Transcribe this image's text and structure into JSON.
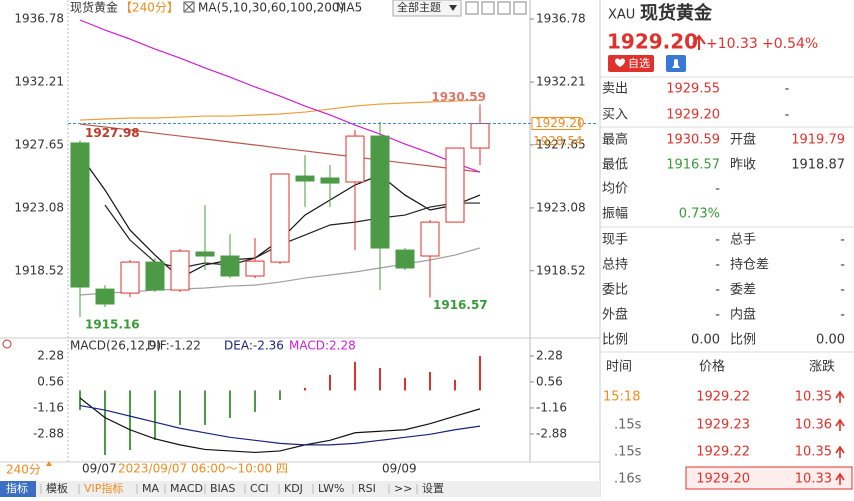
{
  "chart_data": [
    {
      "type": "candlestick",
      "title": "现货黄金",
      "subtitle": "【240分】",
      "indicator_label": "MA(5,10,30,60,100,200)",
      "indicator_series": "MA5",
      "categories": [
        "09/07",
        null,
        null,
        null,
        null,
        null,
        null,
        null,
        null,
        null,
        null,
        null,
        "09/09",
        null,
        null,
        null,
        null
      ],
      "cursor_label": "2023/09/07 06:00～10:00 四",
      "open": [
        1927.79,
        1917.19,
        1916.9,
        1919.15,
        1917.12,
        1919.88,
        1919.59,
        1918.14,
        1919.15,
        1925.39,
        1925.25,
        1924.96,
        1928.29,
        1920.02,
        1919.59,
        1922.05,
        1927.42
      ],
      "high": [
        1927.98,
        1917.48,
        1919.3,
        1919.44,
        1920.1,
        1923.29,
        1921.18,
        1920.89,
        1925.54,
        1926.91,
        1926.19,
        1928.73,
        1929.31,
        1920.17,
        1922.2,
        1927.42,
        1930.59
      ],
      "low": [
        1915.16,
        1915.89,
        1916.61,
        1916.98,
        1916.98,
        1918.57,
        1917.99,
        1917.99,
        1919.0,
        1923.14,
        1923.14,
        1920.02,
        1917.12,
        1918.57,
        1916.57,
        1922.05,
        1926.19
      ],
      "close": [
        1917.34,
        1916.11,
        1919.15,
        1917.12,
        1919.95,
        1919.59,
        1918.14,
        1919.22,
        1925.54,
        1925.03,
        1924.88,
        1928.29,
        1920.17,
        1918.72,
        1922.05,
        1927.42,
        1929.2
      ],
      "up_color": "#e0322c",
      "down_color": "#4c9a45",
      "series": [
        {
          "color": "#111111",
          "values": [
            1926.91,
            1924.38,
            1921.47,
            1919.66,
            1917.99,
            1918.94,
            1919.3,
            1919.44,
            1920.75,
            1922.56,
            1923.65,
            1924.74,
            1925.46,
            1924.01,
            1922.93,
            1923.29,
            1924.01
          ]
        },
        {
          "color": "#222222",
          "values": [
            null,
            1923.29,
            1920.75,
            1919.15,
            1918.72,
            1919.08,
            1918.94,
            1919.44,
            1920.39,
            1921.11,
            1921.84,
            1922.05,
            1922.35,
            1922.56,
            1923.14,
            1923.43,
            1923.43
          ]
        },
        {
          "color": "#a0a0a0",
          "values": [
            1916.76,
            1916.9,
            1916.98,
            1917.12,
            1917.19,
            1917.27,
            1917.41,
            1917.48,
            1917.7,
            1917.99,
            1918.21,
            1918.43,
            1918.72,
            1919.01,
            1919.3,
            1919.66,
            1920.17
          ]
        },
        {
          "color": "#e8a03c",
          "values": [
            1929.45,
            1929.53,
            1929.6,
            1929.6,
            1929.67,
            1929.74,
            1929.74,
            1929.82,
            1929.89,
            1930.03,
            1930.25,
            1930.47,
            1930.61,
            1930.69,
            1930.76,
            1930.83,
            1930.9
          ]
        },
        {
          "color": "#b85a50",
          "values": [
            1929.16,
            1928.95,
            1928.73,
            1928.51,
            1928.29,
            1928.08,
            1927.86,
            1927.64,
            1927.42,
            1927.21,
            1926.99,
            1926.77,
            1926.55,
            1926.33,
            1926.12,
            1925.9,
            1925.68
          ]
        },
        {
          "color": "#d020d0",
          "values": [
            1936.71,
            1935.98,
            1935.33,
            1934.6,
            1933.95,
            1933.23,
            1932.57,
            1931.85,
            1931.19,
            1930.47,
            1929.82,
            1929.09,
            1928.44,
            1927.71,
            1927.06,
            1926.33,
            1925.68
          ]
        }
      ],
      "ylim": [
        1913.86,
        1937.29
      ],
      "yticks": [
        1936.78,
        1932.21,
        1927.65,
        1923.08,
        1918.52
      ],
      "grid": false,
      "extreme_labels": [
        1927.98,
        1915.16,
        1930.59,
        1916.57
      ],
      "price_line": {
        "value": 1929.2,
        "label": "1929.20"
      },
      "ma_marker": 1928.54
    },
    {
      "type": "macd",
      "title": "MACD(26,12,9)",
      "legend_labels": [
        "DIF:-1.22",
        "DEA:-2.36",
        "MACD:2.28"
      ],
      "values": [
        -1.29,
        -4.27,
        -3.94,
        -3.27,
        -2.28,
        -2.28,
        -1.82,
        -1.42,
        -0.63,
        0.17,
        1.03,
        1.89,
        1.49,
        0.83,
        1.22,
        0.7,
        2.28
      ],
      "up_color": "#e0322c",
      "down_color": "#4c9a45",
      "series": [
        {
          "color": "#111111",
          "values": [
            -0.5,
            -1.8,
            -2.6,
            -3.2,
            -3.6,
            -3.9,
            -4.0,
            -4.1,
            -4.0,
            -3.6,
            -3.3,
            -2.8,
            -2.7,
            -2.6,
            -2.2,
            -1.7,
            -1.22
          ]
        },
        {
          "color": "#1a237e",
          "values": [
            -1.0,
            -1.3,
            -1.7,
            -2.1,
            -2.5,
            -2.8,
            -3.1,
            -3.3,
            -3.5,
            -3.6,
            -3.6,
            -3.5,
            -3.3,
            -3.1,
            -2.9,
            -2.6,
            -2.36
          ]
        }
      ],
      "ylim": [
        -4.6,
        2.74
      ],
      "yticks": [
        2.28,
        0.56,
        -1.16,
        -2.88
      ],
      "grid": false
    }
  ],
  "toolbar": {
    "theme": "全部主题"
  },
  "footer": {
    "period": "240分",
    "tabs": [
      "指标",
      "模板",
      "VIP指标",
      "MA",
      "MACD",
      "BIAS",
      "CCI",
      "KDJ",
      "LW%",
      "RSI",
      ">>",
      "设置"
    ]
  },
  "quote": {
    "code": "XAU",
    "name": "现货黄金",
    "price": "1929.20",
    "change": "+10.33",
    "change_pct": "+0.54%",
    "watch": "自选",
    "rows": [
      [
        "卖出",
        "1929.55",
        "-"
      ],
      [
        "买入",
        "1929.20",
        "-"
      ],
      [
        "最高",
        "1930.59",
        "开盘",
        "1919.79"
      ],
      [
        "最低",
        "1916.57",
        "昨收",
        "1918.87"
      ],
      [
        "均价",
        "-"
      ],
      [
        "振幅",
        "0.73%"
      ],
      [
        "现手",
        "-",
        "总手",
        "-"
      ],
      [
        "总持",
        "-",
        "持仓差",
        "-"
      ],
      [
        "委比",
        "-",
        "委差",
        "-"
      ],
      [
        "外盘",
        "-",
        "内盘",
        "-"
      ],
      [
        "比例",
        "0.00",
        "比例",
        "0.00"
      ]
    ],
    "trades_header": [
      "时间",
      "价格",
      "涨跌"
    ],
    "trades": [
      [
        "15:18",
        "1929.22",
        "10.35"
      ],
      [
        ".15s",
        "1929.23",
        "10.36"
      ],
      [
        ".15s",
        "1929.22",
        "10.35"
      ],
      [
        ".16s",
        "1929.20",
        "10.33"
      ]
    ]
  }
}
